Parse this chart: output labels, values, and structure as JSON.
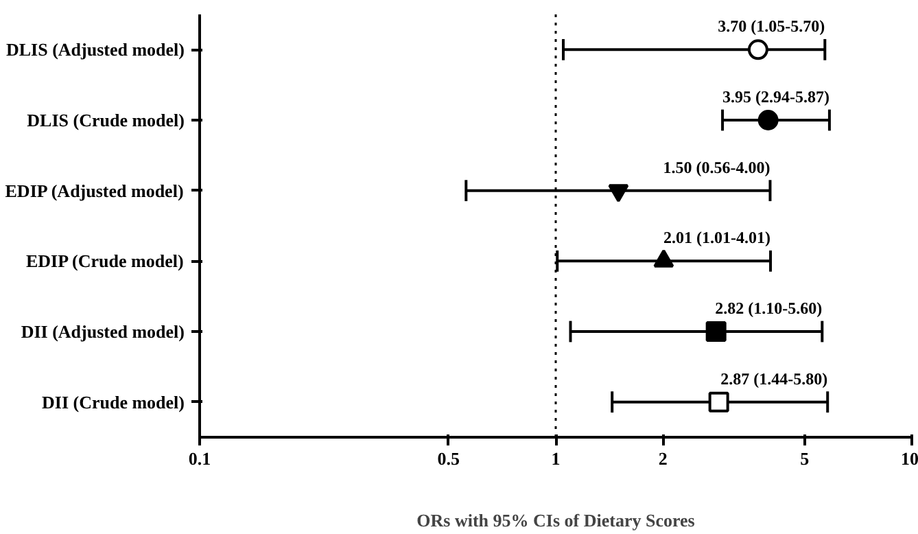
{
  "chart_data": {
    "type": "scatter",
    "orientation": "horizontal",
    "xlabel": "ORs with 95% CIs of Dietary Scores",
    "categories": [
      "DLIS (Adjusted model)",
      "DLIS (Crude model)",
      "EDIP (Adjusted model)",
      "EDIP (Crude model)",
      "DII (Adjusted model)",
      "DII (Crude model)"
    ],
    "series": [
      {
        "color": "#ffffff",
        "marker": "circle",
        "values": [
          3.7,
          null,
          null,
          null,
          null,
          null
        ],
        "errors": [
          [
            1.05,
            5.7
          ],
          null,
          null,
          null,
          null,
          null
        ],
        "value_labels": [
          "3.70 (1.05-5.70)",
          null,
          null,
          null,
          null,
          null
        ]
      },
      {
        "color": "#000000",
        "marker": "circle",
        "values": [
          null,
          3.95,
          null,
          null,
          null,
          null
        ],
        "errors": [
          null,
          [
            2.94,
            5.87
          ],
          null,
          null,
          null,
          null
        ],
        "value_labels": [
          null,
          "3.95 (2.94-5.87)",
          null,
          null,
          null,
          null
        ]
      },
      {
        "color": "#000000",
        "marker": "triangle_down",
        "values": [
          null,
          null,
          1.5,
          null,
          null,
          null
        ],
        "errors": [
          null,
          null,
          [
            0.56,
            4.0
          ],
          null,
          null,
          null
        ],
        "value_labels": [
          null,
          null,
          "1.50 (0.56-4.00)",
          null,
          null,
          null
        ]
      },
      {
        "color": "#000000",
        "marker": "triangle",
        "values": [
          null,
          null,
          null,
          2.01,
          null,
          null
        ],
        "errors": [
          null,
          null,
          null,
          [
            1.01,
            4.01
          ],
          null,
          null
        ],
        "value_labels": [
          null,
          null,
          null,
          "2.01 (1.01-4.01)",
          null,
          null
        ]
      },
      {
        "color": "#000000",
        "marker": "square",
        "values": [
          null,
          null,
          null,
          null,
          2.82,
          null
        ],
        "errors": [
          null,
          null,
          null,
          null,
          [
            1.1,
            5.6
          ],
          null
        ],
        "value_labels": [
          null,
          null,
          null,
          null,
          "2.82 (1.10-5.60)",
          null
        ]
      },
      {
        "color": "#ffffff",
        "marker": "square",
        "values": [
          null,
          null,
          null,
          null,
          null,
          2.87
        ],
        "errors": [
          null,
          null,
          null,
          null,
          null,
          [
            1.44,
            5.8
          ]
        ],
        "value_labels": [
          null,
          null,
          null,
          null,
          null,
          "2.87 (1.44-5.80)"
        ]
      }
    ],
    "log": "x",
    "xlim": [
      0.1,
      10
    ],
    "xticks": [
      0.1,
      0.5,
      1,
      2,
      5,
      10
    ],
    "ref_lines": [
      {
        "axis": "x",
        "value": 1,
        "line_style": "dotted",
        "color": "#000000"
      }
    ],
    "grid": false
  }
}
